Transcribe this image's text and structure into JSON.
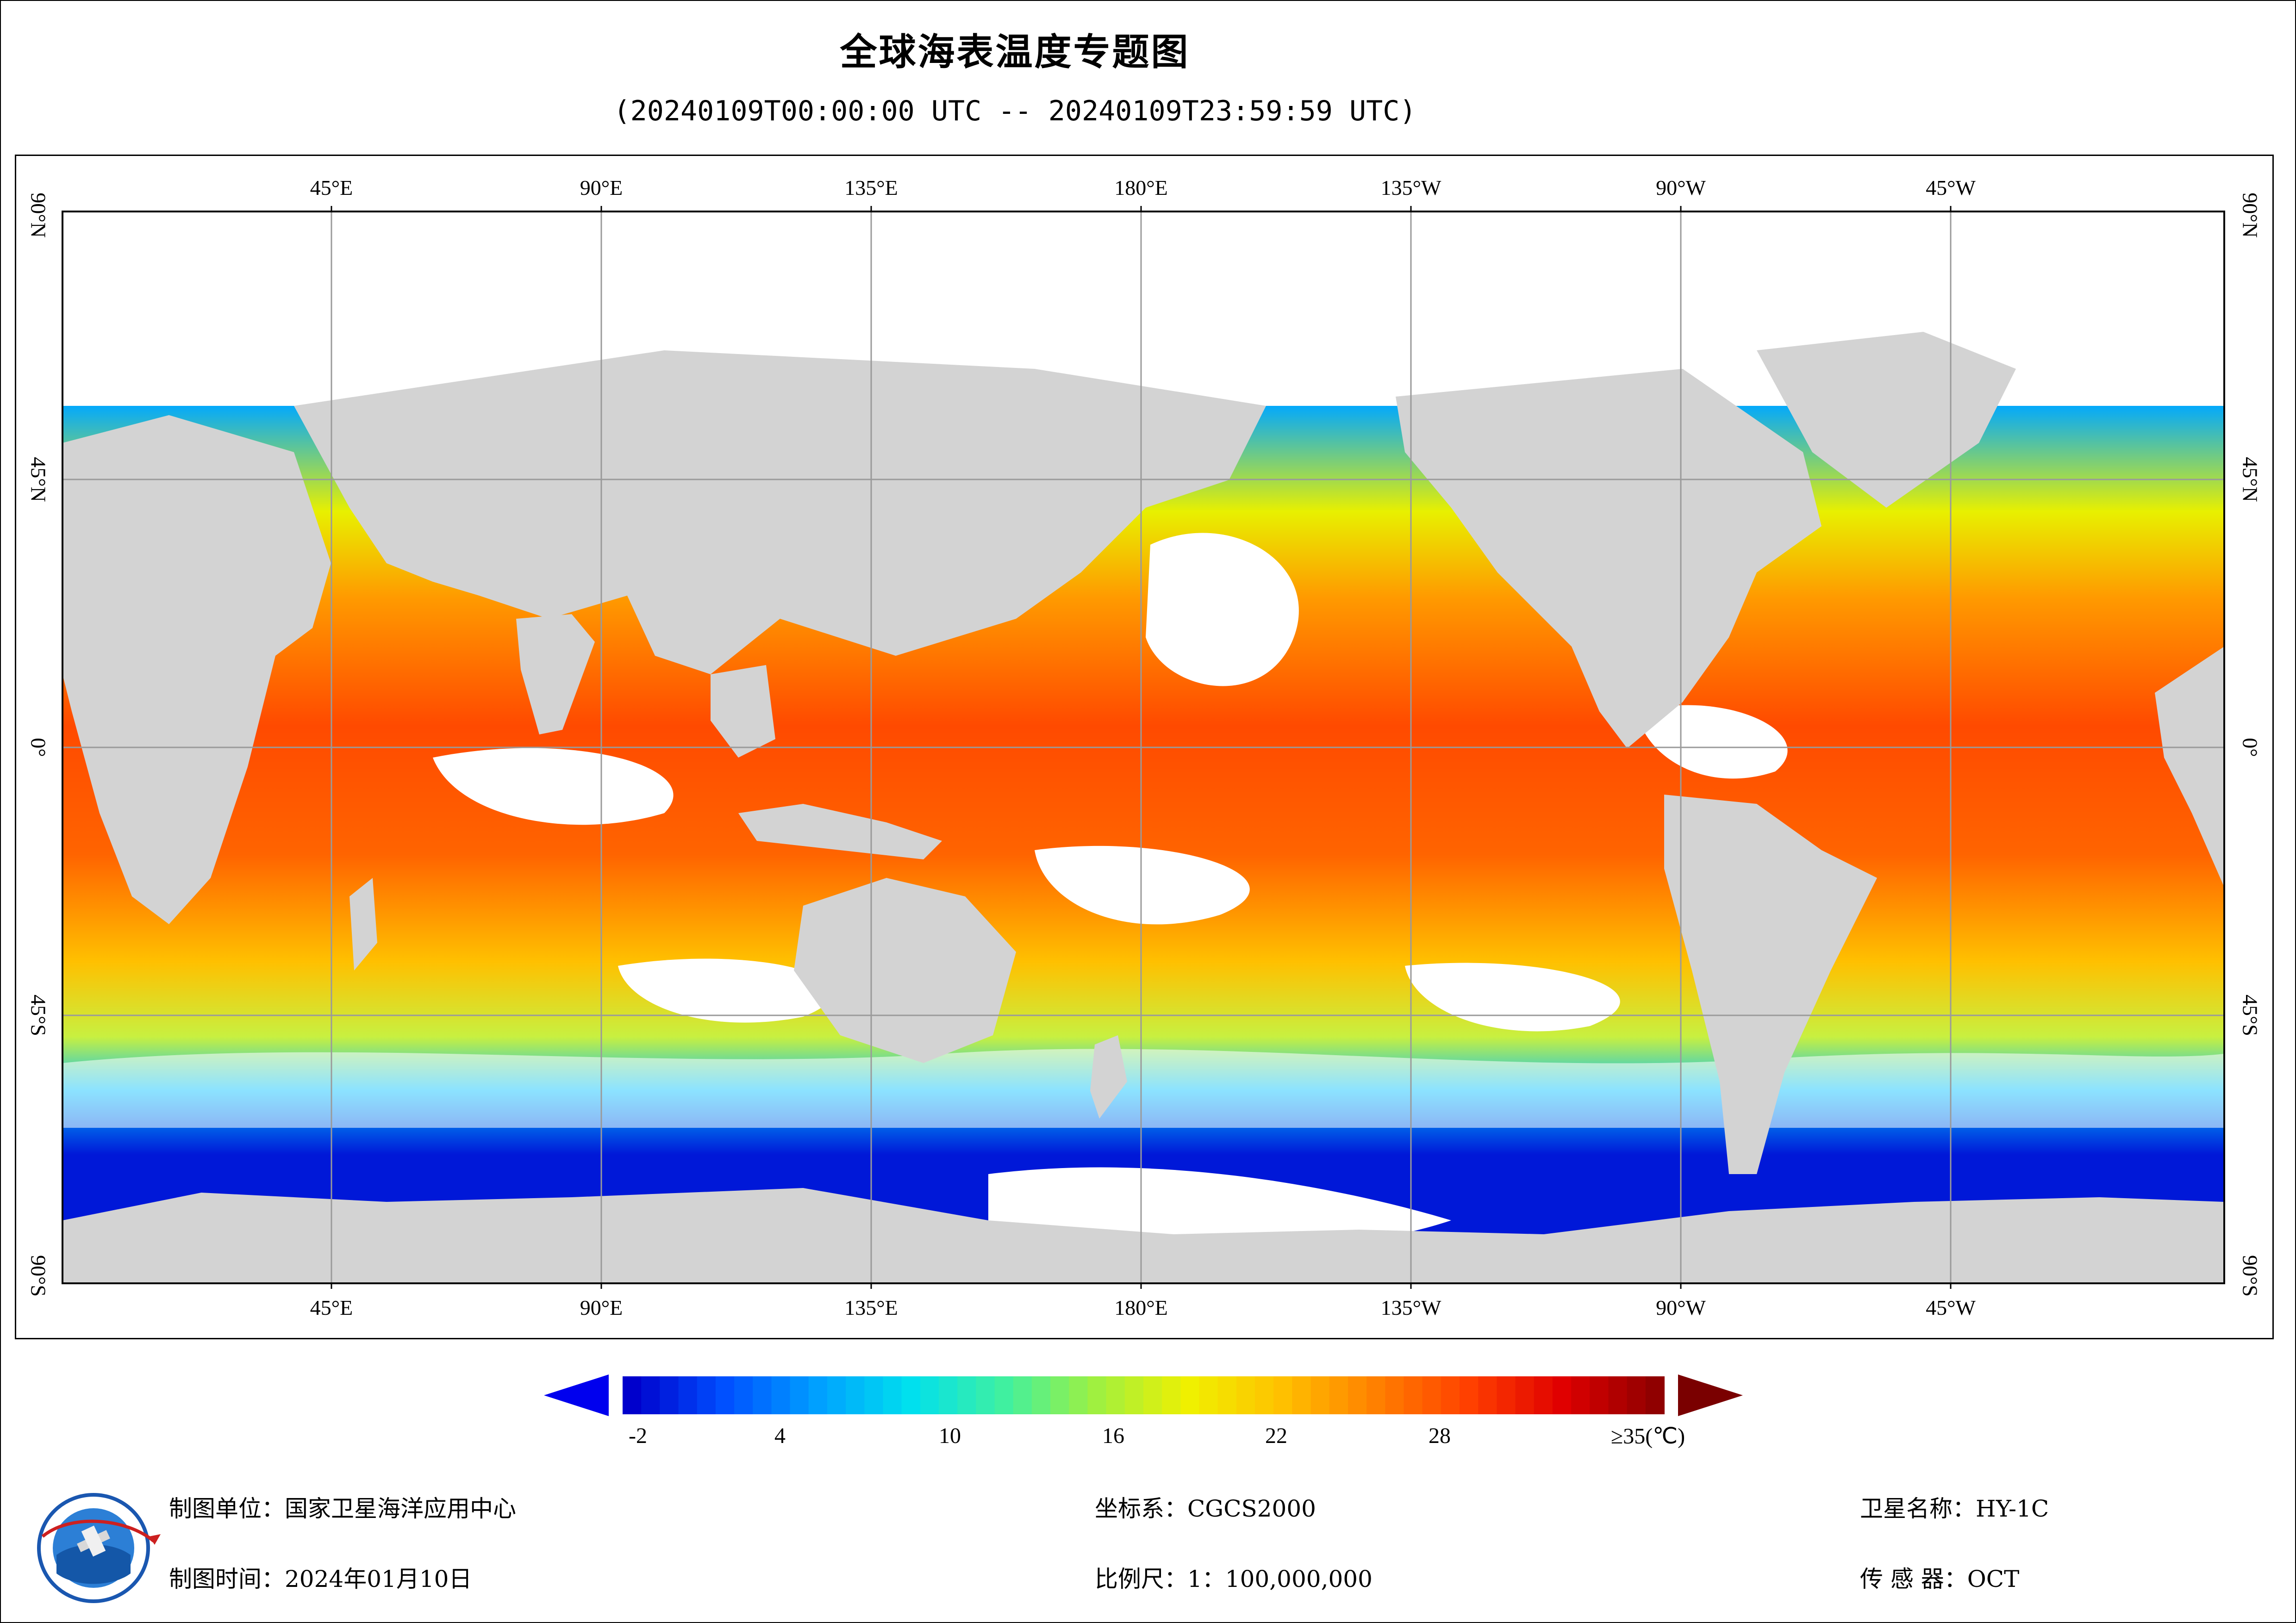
{
  "title": "全球海表温度专题图",
  "subtitle": "(20240109T00:00:00 UTC -- 20240109T23:59:59 UTC)",
  "axes": {
    "longitude_labels": [
      "45°E",
      "90°E",
      "135°E",
      "180°E",
      "135°W",
      "90°W",
      "45°W"
    ],
    "latitude_labels": [
      "90°N",
      "45°N",
      "0°",
      "45°S",
      "90°S"
    ]
  },
  "legend": {
    "labels": [
      "-2",
      "4",
      "10",
      "16",
      "22",
      "28",
      "≥35(℃)"
    ],
    "min_value": -2,
    "max_value": 35,
    "colors": [
      "#0000cc",
      "#0050ff",
      "#00a0ff",
      "#00e0ee",
      "#40f0a0",
      "#a0f040",
      "#f0f000",
      "#ffc000",
      "#ff8000",
      "#ff4000",
      "#e00000",
      "#900000"
    ]
  },
  "colors": {
    "land": "#d3d3d3",
    "no_data": "#ffffff",
    "grid": "#9a9a9a",
    "ocean_warm": "#ff5a00",
    "ocean_cold": "#0010d8"
  },
  "footer": {
    "unit": "制图单位：国家卫星海洋应用中心",
    "time": "制图时间：2024年01月10日",
    "crs": "坐标系：CGCS2000",
    "scale": "比例尺：1：100,000,000",
    "satellite": "卫星名称：HY-1C",
    "sensor": "传 感 器：OCT"
  },
  "logo": {
    "name": "nsoas-logo-icon"
  }
}
